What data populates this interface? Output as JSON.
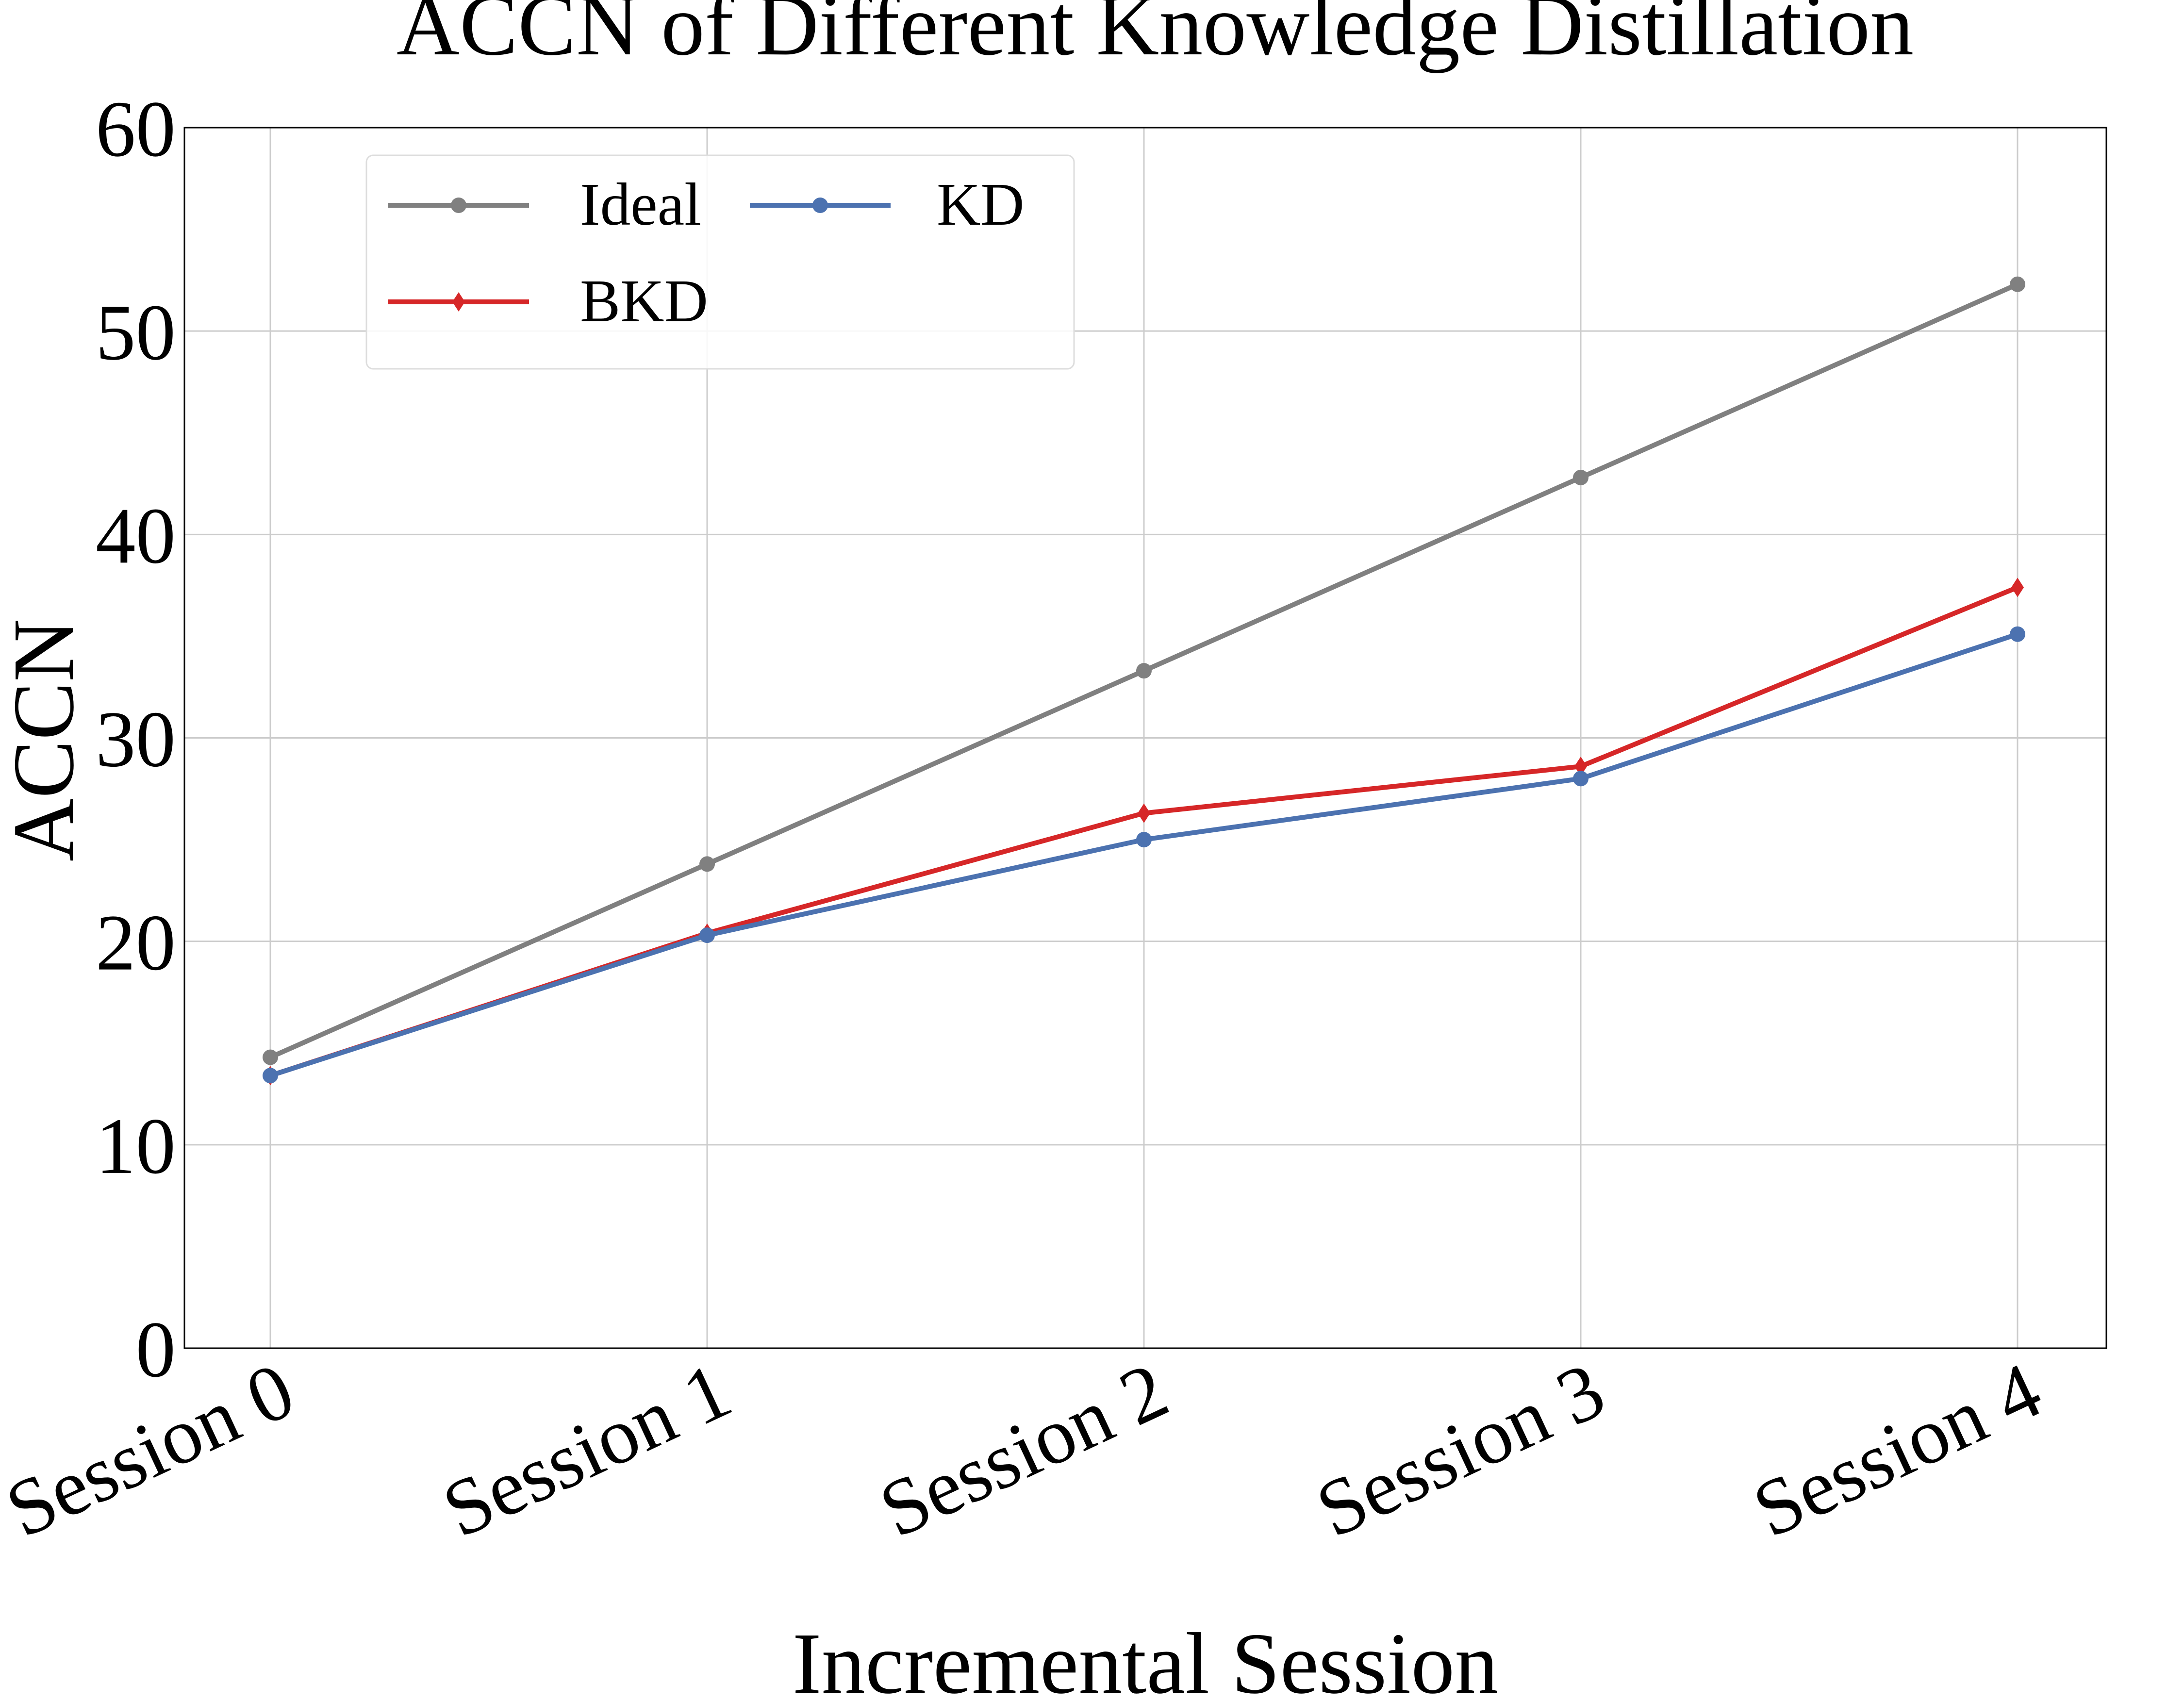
{
  "chart_data": {
    "type": "line",
    "title": "ACCN of Different Knowledge Distillation",
    "xlabel": "Incremental Session",
    "ylabel": "ACCN",
    "categories": [
      "Session 0",
      "Session 1",
      "Session 2",
      "Session 3",
      "Session 4"
    ],
    "ylim": [
      0,
      60
    ],
    "yticks": [
      0,
      10,
      20,
      30,
      40,
      50,
      60
    ],
    "grid": true,
    "legend_placement": "top-left",
    "series": [
      {
        "name": "Ideal",
        "values": [
          14.3,
          23.8,
          33.3,
          42.8,
          52.3
        ],
        "color": "#808080",
        "marker": "circle"
      },
      {
        "name": "BKD",
        "values": [
          13.4,
          20.4,
          26.3,
          28.6,
          37.4
        ],
        "color": "#d62728",
        "marker": "diamond"
      },
      {
        "name": "KD",
        "values": [
          13.4,
          20.3,
          25.0,
          28.0,
          35.1
        ],
        "color": "#4c72b0",
        "marker": "circle"
      }
    ]
  }
}
